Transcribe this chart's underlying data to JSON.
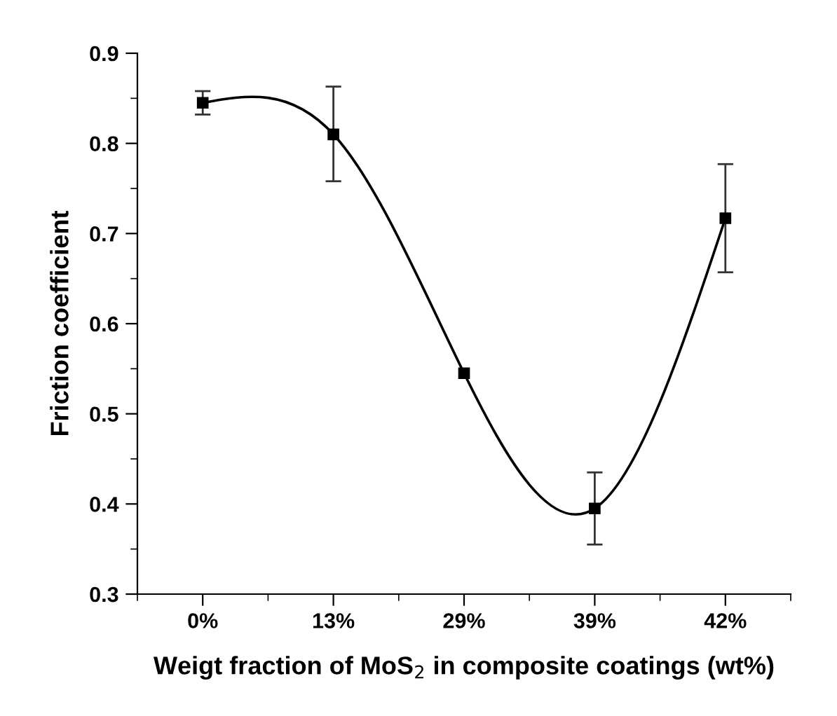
{
  "chart_data": {
    "type": "line",
    "xlabel": "Weigt fraction of MoS$_{2}$ in composite coatings (wt%)",
    "ylabel": "Friction coefficient",
    "categories": [
      "0%",
      "13%",
      "29%",
      "39%",
      "42%"
    ],
    "series": [
      {
        "color": "#000000",
        "values": [
          0.845,
          0.81,
          0.545,
          0.395,
          0.717
        ],
        "errors": [
          0.013,
          [
            0.758,
            0.863
          ],
          null,
          [
            0.355,
            0.435
          ],
          [
            0.657,
            0.777
          ]
        ]
      }
    ],
    "ylim": [
      0.3,
      0.9
    ],
    "yticks": [
      0.3,
      0.4,
      0.5,
      0.6,
      0.7,
      0.8,
      0.9
    ],
    "marker": "square",
    "line_style": "solid",
    "grid": false
  }
}
